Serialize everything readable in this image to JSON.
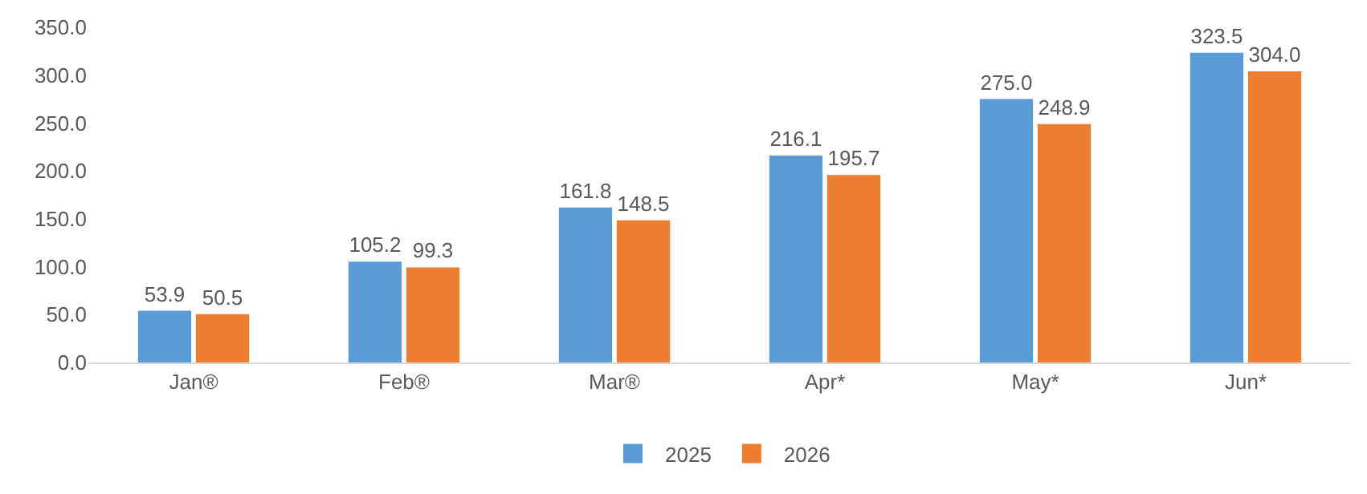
{
  "chart_data": {
    "type": "bar",
    "categories": [
      "Jan®",
      "Feb®",
      "Mar®",
      "Apr*",
      "May*",
      "Jun*"
    ],
    "series": [
      {
        "name": "2025",
        "color": "#5b9bd5",
        "values": [
          53.9,
          105.2,
          161.8,
          216.1,
          275.0,
          323.5
        ],
        "value_labels": [
          "53.9",
          "105.2",
          "161.8",
          "216.1",
          "275.0",
          "323.5"
        ]
      },
      {
        "name": "2026",
        "color": "#ed7d31",
        "values": [
          50.5,
          99.3,
          148.5,
          195.7,
          248.9,
          304.0
        ],
        "value_labels": [
          "50.5",
          "99.3",
          "148.5",
          "195.7",
          "248.9",
          "304.0"
        ]
      }
    ],
    "ylim": [
      0,
      350
    ],
    "yticks": [
      {
        "value": 0,
        "label": "0.0"
      },
      {
        "value": 50,
        "label": "50.0"
      },
      {
        "value": 100,
        "label": "100.0"
      },
      {
        "value": 150,
        "label": "150.0"
      },
      {
        "value": 200,
        "label": "200.0"
      },
      {
        "value": 250,
        "label": "250.0"
      },
      {
        "value": 300,
        "label": "300.0"
      },
      {
        "value": 350,
        "label": "350.0"
      }
    ],
    "grid": false,
    "legend": "bottom"
  }
}
